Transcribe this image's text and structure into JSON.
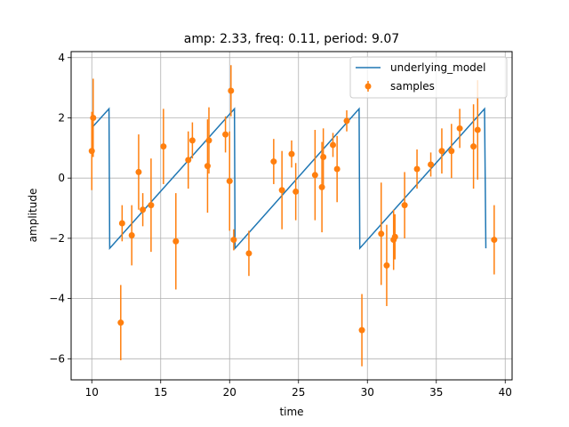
{
  "chart_data": {
    "type": "line",
    "title": "amp: 2.33, freq: 0.11, period: 9.07",
    "xlabel": "time",
    "ylabel": "amplitude",
    "xlim": [
      8.5,
      40.5
    ],
    "ylim": [
      -6.7,
      4.2
    ],
    "xticks": [
      10,
      15,
      20,
      25,
      30,
      35,
      40
    ],
    "yticks": [
      -6,
      -4,
      -2,
      0,
      2,
      4
    ],
    "grid": true,
    "legend_position": "top-right",
    "colors": {
      "model": "#1f77b4",
      "samples": "#ff7f0e"
    },
    "series": [
      {
        "name": "underlying_model",
        "type": "line",
        "points": [
          [
            10.0,
            1.67
          ],
          [
            11.25,
            2.3
          ],
          [
            11.3,
            -2.33
          ],
          [
            20.35,
            2.3
          ],
          [
            20.4,
            -2.33
          ],
          [
            29.4,
            2.3
          ],
          [
            29.45,
            -2.33
          ],
          [
            38.5,
            2.3
          ],
          [
            38.6,
            -2.33
          ]
        ]
      },
      {
        "name": "samples",
        "type": "errorbar",
        "points": [
          {
            "x": 10.0,
            "y": 0.9,
            "err": 1.3
          },
          {
            "x": 10.1,
            "y": 2.0,
            "err": 1.3
          },
          {
            "x": 12.1,
            "y": -4.8,
            "err": 1.25
          },
          {
            "x": 12.2,
            "y": -1.5,
            "err": 0.6
          },
          {
            "x": 12.9,
            "y": -1.9,
            "err": 1.0
          },
          {
            "x": 13.4,
            "y": 0.2,
            "err": 1.25
          },
          {
            "x": 13.7,
            "y": -1.05,
            "err": 0.55
          },
          {
            "x": 14.3,
            "y": -0.9,
            "err": 1.55
          },
          {
            "x": 15.2,
            "y": 1.05,
            "err": 1.25
          },
          {
            "x": 16.1,
            "y": -2.1,
            "err": 1.6
          },
          {
            "x": 17.0,
            "y": 0.6,
            "err": 0.95
          },
          {
            "x": 17.3,
            "y": 1.25,
            "err": 0.6
          },
          {
            "x": 18.4,
            "y": 0.4,
            "err": 1.55
          },
          {
            "x": 18.5,
            "y": 1.25,
            "err": 1.1
          },
          {
            "x": 19.7,
            "y": 1.45,
            "err": 0.6
          },
          {
            "x": 20.0,
            "y": -0.1,
            "err": 1.65
          },
          {
            "x": 20.1,
            "y": 2.9,
            "err": 0.85
          },
          {
            "x": 20.3,
            "y": -2.05,
            "err": 0.35
          },
          {
            "x": 21.4,
            "y": -2.5,
            "err": 0.75
          },
          {
            "x": 23.2,
            "y": 0.55,
            "err": 0.75
          },
          {
            "x": 23.8,
            "y": -0.4,
            "err": 1.3
          },
          {
            "x": 24.5,
            "y": 0.8,
            "err": 0.45
          },
          {
            "x": 24.8,
            "y": -0.45,
            "err": 0.95
          },
          {
            "x": 26.2,
            "y": 0.1,
            "err": 1.5
          },
          {
            "x": 26.7,
            "y": -0.3,
            "err": 1.5
          },
          {
            "x": 26.8,
            "y": 0.7,
            "err": 0.95
          },
          {
            "x": 27.5,
            "y": 1.1,
            "err": 0.4
          },
          {
            "x": 27.8,
            "y": 0.3,
            "err": 1.1
          },
          {
            "x": 28.5,
            "y": 1.9,
            "err": 0.35
          },
          {
            "x": 29.6,
            "y": -5.05,
            "err": 1.2
          },
          {
            "x": 31.0,
            "y": -1.85,
            "err": 1.7
          },
          {
            "x": 31.4,
            "y": -2.9,
            "err": 1.35
          },
          {
            "x": 31.9,
            "y": -2.05,
            "err": 1.0
          },
          {
            "x": 32.0,
            "y": -1.95,
            "err": 0.75
          },
          {
            "x": 32.7,
            "y": -0.9,
            "err": 1.1
          },
          {
            "x": 33.6,
            "y": 0.3,
            "err": 0.65
          },
          {
            "x": 34.6,
            "y": 0.45,
            "err": 0.4
          },
          {
            "x": 35.4,
            "y": 0.9,
            "err": 0.75
          },
          {
            "x": 36.1,
            "y": 0.9,
            "err": 0.9
          },
          {
            "x": 36.7,
            "y": 1.65,
            "err": 0.65
          },
          {
            "x": 37.7,
            "y": 1.05,
            "err": 1.4
          },
          {
            "x": 38.0,
            "y": 1.6,
            "err": 1.65
          },
          {
            "x": 39.2,
            "y": -2.05,
            "err": 1.15
          }
        ]
      }
    ]
  }
}
